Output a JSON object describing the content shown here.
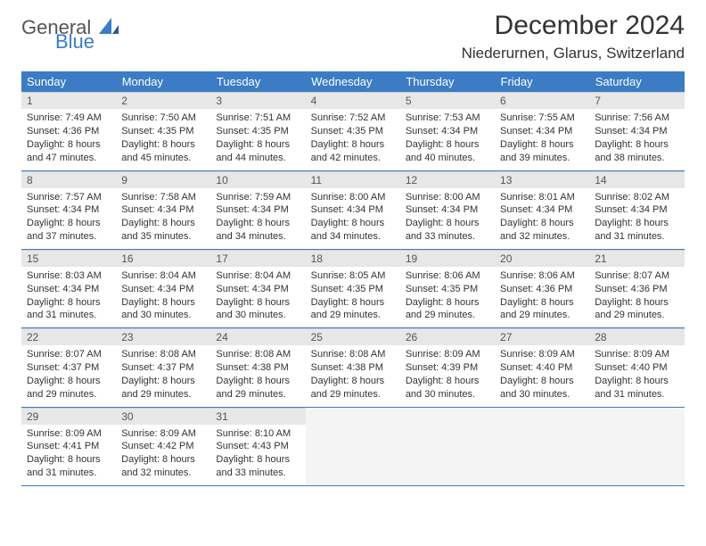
{
  "brand": {
    "part1": "General",
    "part2": "Blue"
  },
  "title": "December 2024",
  "location": "Niederurnen, Glarus, Switzerland",
  "colors": {
    "header_bg": "#3b7cc4",
    "header_fg": "#ffffff",
    "daynum_bg": "#e7e7e7",
    "body_text": "#333333",
    "brand_gray": "#555555",
    "brand_blue": "#3b7cc4",
    "empty_bg": "#f4f4f4",
    "rule": "#3b7cc4"
  },
  "weekdays": [
    "Sunday",
    "Monday",
    "Tuesday",
    "Wednesday",
    "Thursday",
    "Friday",
    "Saturday"
  ],
  "weeks": [
    [
      {
        "n": "1",
        "sunrise": "7:49 AM",
        "sunset": "4:36 PM",
        "dl1": "Daylight: 8 hours",
        "dl2": "and 47 minutes."
      },
      {
        "n": "2",
        "sunrise": "7:50 AM",
        "sunset": "4:35 PM",
        "dl1": "Daylight: 8 hours",
        "dl2": "and 45 minutes."
      },
      {
        "n": "3",
        "sunrise": "7:51 AM",
        "sunset": "4:35 PM",
        "dl1": "Daylight: 8 hours",
        "dl2": "and 44 minutes."
      },
      {
        "n": "4",
        "sunrise": "7:52 AM",
        "sunset": "4:35 PM",
        "dl1": "Daylight: 8 hours",
        "dl2": "and 42 minutes."
      },
      {
        "n": "5",
        "sunrise": "7:53 AM",
        "sunset": "4:34 PM",
        "dl1": "Daylight: 8 hours",
        "dl2": "and 40 minutes."
      },
      {
        "n": "6",
        "sunrise": "7:55 AM",
        "sunset": "4:34 PM",
        "dl1": "Daylight: 8 hours",
        "dl2": "and 39 minutes."
      },
      {
        "n": "7",
        "sunrise": "7:56 AM",
        "sunset": "4:34 PM",
        "dl1": "Daylight: 8 hours",
        "dl2": "and 38 minutes."
      }
    ],
    [
      {
        "n": "8",
        "sunrise": "7:57 AM",
        "sunset": "4:34 PM",
        "dl1": "Daylight: 8 hours",
        "dl2": "and 37 minutes."
      },
      {
        "n": "9",
        "sunrise": "7:58 AM",
        "sunset": "4:34 PM",
        "dl1": "Daylight: 8 hours",
        "dl2": "and 35 minutes."
      },
      {
        "n": "10",
        "sunrise": "7:59 AM",
        "sunset": "4:34 PM",
        "dl1": "Daylight: 8 hours",
        "dl2": "and 34 minutes."
      },
      {
        "n": "11",
        "sunrise": "8:00 AM",
        "sunset": "4:34 PM",
        "dl1": "Daylight: 8 hours",
        "dl2": "and 34 minutes."
      },
      {
        "n": "12",
        "sunrise": "8:00 AM",
        "sunset": "4:34 PM",
        "dl1": "Daylight: 8 hours",
        "dl2": "and 33 minutes."
      },
      {
        "n": "13",
        "sunrise": "8:01 AM",
        "sunset": "4:34 PM",
        "dl1": "Daylight: 8 hours",
        "dl2": "and 32 minutes."
      },
      {
        "n": "14",
        "sunrise": "8:02 AM",
        "sunset": "4:34 PM",
        "dl1": "Daylight: 8 hours",
        "dl2": "and 31 minutes."
      }
    ],
    [
      {
        "n": "15",
        "sunrise": "8:03 AM",
        "sunset": "4:34 PM",
        "dl1": "Daylight: 8 hours",
        "dl2": "and 31 minutes."
      },
      {
        "n": "16",
        "sunrise": "8:04 AM",
        "sunset": "4:34 PM",
        "dl1": "Daylight: 8 hours",
        "dl2": "and 30 minutes."
      },
      {
        "n": "17",
        "sunrise": "8:04 AM",
        "sunset": "4:34 PM",
        "dl1": "Daylight: 8 hours",
        "dl2": "and 30 minutes."
      },
      {
        "n": "18",
        "sunrise": "8:05 AM",
        "sunset": "4:35 PM",
        "dl1": "Daylight: 8 hours",
        "dl2": "and 29 minutes."
      },
      {
        "n": "19",
        "sunrise": "8:06 AM",
        "sunset": "4:35 PM",
        "dl1": "Daylight: 8 hours",
        "dl2": "and 29 minutes."
      },
      {
        "n": "20",
        "sunrise": "8:06 AM",
        "sunset": "4:36 PM",
        "dl1": "Daylight: 8 hours",
        "dl2": "and 29 minutes."
      },
      {
        "n": "21",
        "sunrise": "8:07 AM",
        "sunset": "4:36 PM",
        "dl1": "Daylight: 8 hours",
        "dl2": "and 29 minutes."
      }
    ],
    [
      {
        "n": "22",
        "sunrise": "8:07 AM",
        "sunset": "4:37 PM",
        "dl1": "Daylight: 8 hours",
        "dl2": "and 29 minutes."
      },
      {
        "n": "23",
        "sunrise": "8:08 AM",
        "sunset": "4:37 PM",
        "dl1": "Daylight: 8 hours",
        "dl2": "and 29 minutes."
      },
      {
        "n": "24",
        "sunrise": "8:08 AM",
        "sunset": "4:38 PM",
        "dl1": "Daylight: 8 hours",
        "dl2": "and 29 minutes."
      },
      {
        "n": "25",
        "sunrise": "8:08 AM",
        "sunset": "4:38 PM",
        "dl1": "Daylight: 8 hours",
        "dl2": "and 29 minutes."
      },
      {
        "n": "26",
        "sunrise": "8:09 AM",
        "sunset": "4:39 PM",
        "dl1": "Daylight: 8 hours",
        "dl2": "and 30 minutes."
      },
      {
        "n": "27",
        "sunrise": "8:09 AM",
        "sunset": "4:40 PM",
        "dl1": "Daylight: 8 hours",
        "dl2": "and 30 minutes."
      },
      {
        "n": "28",
        "sunrise": "8:09 AM",
        "sunset": "4:40 PM",
        "dl1": "Daylight: 8 hours",
        "dl2": "and 31 minutes."
      }
    ],
    [
      {
        "n": "29",
        "sunrise": "8:09 AM",
        "sunset": "4:41 PM",
        "dl1": "Daylight: 8 hours",
        "dl2": "and 31 minutes."
      },
      {
        "n": "30",
        "sunrise": "8:09 AM",
        "sunset": "4:42 PM",
        "dl1": "Daylight: 8 hours",
        "dl2": "and 32 minutes."
      },
      {
        "n": "31",
        "sunrise": "8:10 AM",
        "sunset": "4:43 PM",
        "dl1": "Daylight: 8 hours",
        "dl2": "and 33 minutes."
      },
      null,
      null,
      null,
      null
    ]
  ]
}
